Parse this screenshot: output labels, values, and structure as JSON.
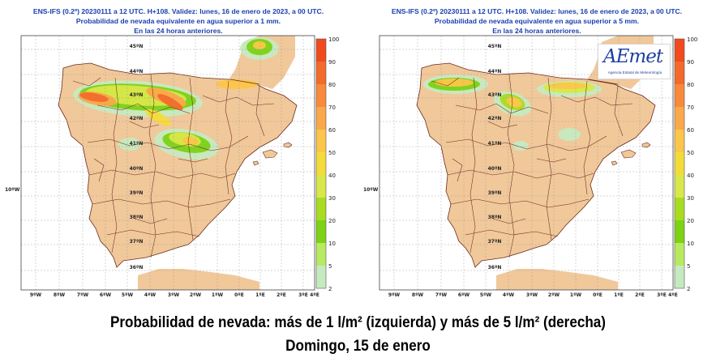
{
  "panels": [
    {
      "id": "left",
      "title_lines": [
        "ENS-IFS (0.2º) 20230111 a 12 UTC. H+108. Validez: lunes, 16 de enero de 2023, a 00 UTC.",
        "Probabilidad de nevada equivalente en agua superior a 1 mm.",
        "En las 24 horas anteriores."
      ],
      "threshold_mm": 1
    },
    {
      "id": "right",
      "title_lines": [
        "ENS-IFS (0.2º) 20230111 a 12 UTC. H+108. Validez: lunes, 16 de enero de 2023, a 00 UTC.",
        "Probabilidad de nevada equivalente en agua superior a 5 mm.",
        "En las 24 horas anteriores."
      ],
      "threshold_mm": 5
    }
  ],
  "latitude_labels": [
    "45ºN",
    "44ºN",
    "43ºN",
    "42ºN",
    "41ºN",
    "40ºN",
    "39ºN",
    "38ºN",
    "37ºN",
    "36ºN"
  ],
  "longitude_labels": [
    "9ºW",
    "8ºW",
    "7ºW",
    "6ºW",
    "5ºW",
    "4ºW",
    "3ºW",
    "2ºW",
    "1ºW",
    "0ºE",
    "1ºE",
    "2ºE",
    "3ºE",
    "4ºE"
  ],
  "side_label": "10ºW",
  "colorbar": {
    "levels": [
      "100",
      "90",
      "80",
      "70",
      "60",
      "50",
      "40",
      "30",
      "20",
      "10",
      "5",
      "2"
    ],
    "colors": [
      "#f04a1e",
      "#f46a2a",
      "#f88a3a",
      "#fba84a",
      "#fcc64a",
      "#f3dc3a",
      "#d8e84a",
      "#a8dc20",
      "#7cd214",
      "#b8ea60",
      "#c6eac0",
      "#dff5e6"
    ]
  },
  "logo": {
    "wordmark": "AEmet",
    "subtitle": "Agencia Estatal de Meteorología"
  },
  "caption": {
    "line1": "Probabilidad de nevada: más de 1 l/m² (izquierda) y más de 5 l/m² (derecha)",
    "line2": "Domingo, 15 de enero"
  },
  "map_colors": {
    "sea": "#ffffff",
    "land": "#f0c89a",
    "borders": "#6b2a1a",
    "graticule": "#9a9a9a"
  }
}
